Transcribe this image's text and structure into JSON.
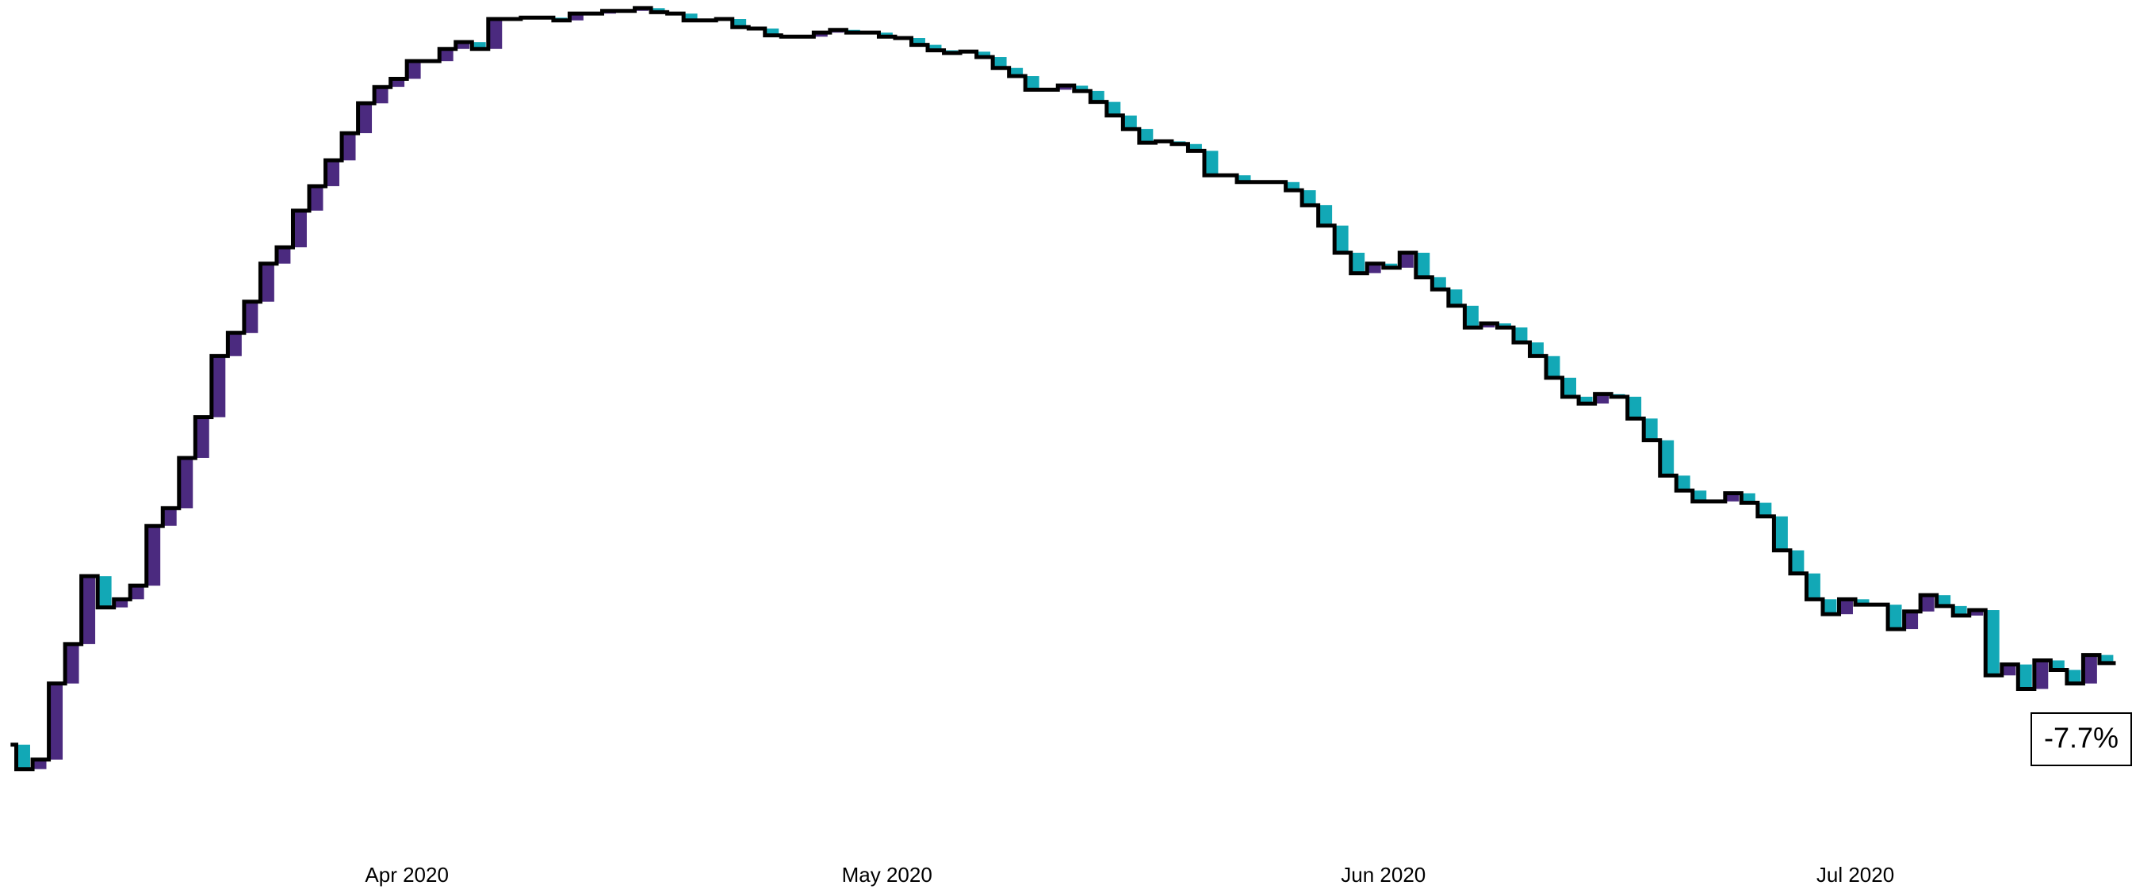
{
  "chart_data": {
    "type": "step",
    "values": [
      -13.7,
      -15.5,
      -14.8,
      -9.2,
      -6.3,
      -1.3,
      -3.6,
      -3,
      -2,
      2.4,
      3.7,
      7.4,
      10.4,
      14.9,
      16.6,
      18.9,
      21.7,
      22.9,
      25.6,
      27.4,
      29.3,
      31.3,
      33.5,
      34.7,
      35.3,
      36.6,
      36.6,
      37.5,
      38,
      37.5,
      39.7,
      39.7,
      39.8,
      39.8,
      39.6,
      40.1,
      40.1,
      40.3,
      40.3,
      40.5,
      40.2,
      40.1,
      39.6,
      39.6,
      39.7,
      39.1,
      39,
      38.5,
      38.4,
      38.4,
      38.7,
      38.9,
      38.7,
      38.7,
      38.4,
      38.3,
      37.8,
      37.4,
      37.2,
      37.3,
      36.9,
      36.1,
      35.5,
      34.5,
      34.5,
      34.8,
      34.4,
      33.6,
      32.6,
      31.6,
      30.6,
      30.7,
      30.5,
      30,
      28.2,
      28.2,
      27.7,
      27.7,
      27.7,
      27.1,
      26,
      24.5,
      22.5,
      21,
      21.7,
      21.4,
      22.5,
      20.7,
      19.8,
      18.6,
      17,
      17.3,
      17,
      15.9,
      14.9,
      13.3,
      11.9,
      11.4,
      12.1,
      11.9,
      10.3,
      8.7,
      6.1,
      5,
      4.2,
      4.2,
      4.8,
      4.1,
      3.1,
      0.6,
      -1.1,
      -3,
      -4.1,
      -3,
      -3.4,
      -3.4,
      -5.2,
      -3.9,
      -2.7,
      -3.5,
      -4.2,
      -3.8,
      -8.6,
      -7.8,
      -9.6,
      -7.5,
      -8.2,
      -9.2,
      -7.1,
      -7.7
    ],
    "xlim": [
      0,
      131
    ],
    "xticks": [
      {
        "value": 25,
        "label": "Apr 2020"
      },
      {
        "value": 54.5,
        "label": "May 2020"
      },
      {
        "value": 85,
        "label": "Jun 2020"
      },
      {
        "value": 114,
        "label": "Jul 2020"
      }
    ],
    "ylim": [
      -18.9,
      41.1
    ],
    "line_color": "#000000",
    "up_color": "#4b2a7f",
    "down_color": "#12a8b6",
    "annotation": "-7.7%"
  }
}
